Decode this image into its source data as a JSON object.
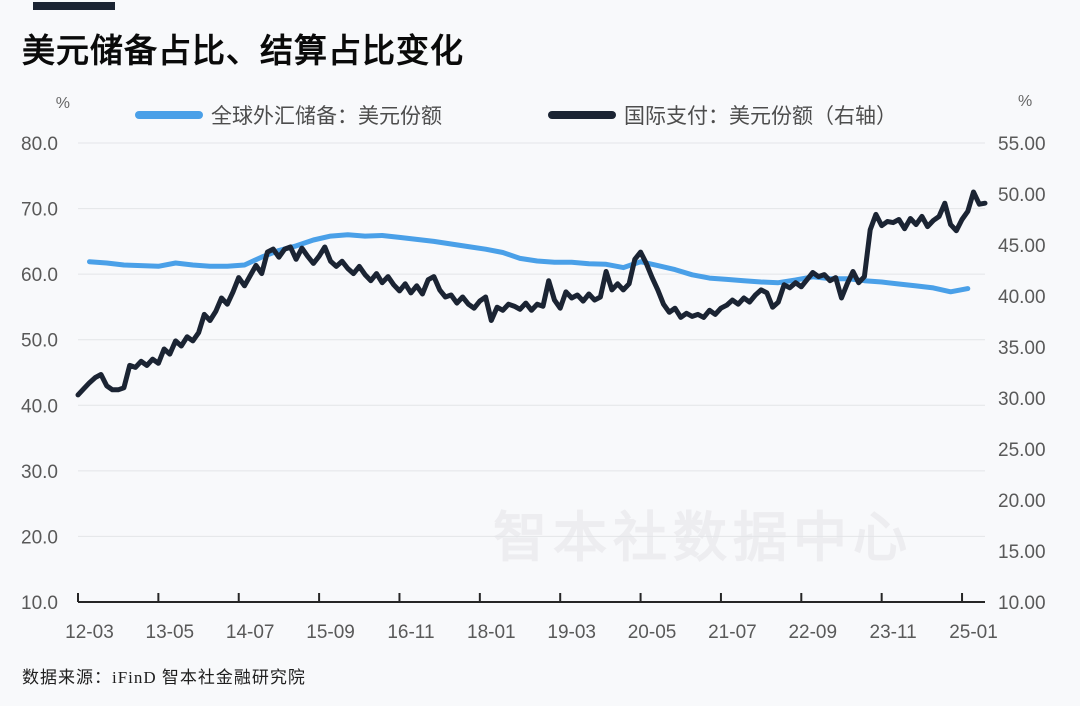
{
  "page": {
    "background": "#f8f9fb"
  },
  "header": {
    "title": "美元储备占比、结算占比变化",
    "accent_bar_color": "#1b2433"
  },
  "legend": [
    {
      "label": "全球外汇储备：美元份额",
      "color": "#4aa0e8"
    },
    {
      "label": "国际支付：美元份额（右轴）",
      "color": "#1b2433"
    }
  ],
  "watermark": {
    "text": "智本社数据中心",
    "color": "#ededf0"
  },
  "footer": {
    "source": "数据来源：iFinD 智本社金融研究院"
  },
  "chart_data": {
    "type": "line",
    "title": "美元储备占比、结算占比变化",
    "grid": "horizontal, at left-axis ticks",
    "legend_position": "top",
    "x_axis": {
      "ticks": [
        "12-03",
        "13-05",
        "14-07",
        "15-09",
        "16-11",
        "18-01",
        "19-03",
        "20-05",
        "21-07",
        "22-09",
        "23-11",
        "25-01"
      ],
      "months_between_ticks": 14,
      "label_month_offset": 2,
      "months_total": 158
    },
    "left_axis": {
      "unit": "%",
      "min": 10,
      "max": 80,
      "ticks": [
        "80.0",
        "70.0",
        "60.0",
        "50.0",
        "40.0",
        "30.0",
        "20.0",
        "10.0"
      ]
    },
    "right_axis": {
      "unit": "%",
      "min": 10,
      "max": 55,
      "ticks": [
        "55.00",
        "50.00",
        "45.00",
        "40.00",
        "35.00",
        "30.00",
        "25.00",
        "20.00",
        "15.00",
        "10.00"
      ]
    },
    "series": [
      {
        "name": "全球外汇储备：美元份额",
        "axis": "left",
        "color": "#4aa0e8",
        "frequency": "quarterly",
        "start_period": "2012-Q1",
        "end_period": "2024-Q4",
        "start_month_offset": 2,
        "month_step": 3,
        "values": [
          61.9,
          61.7,
          61.4,
          61.3,
          61.2,
          61.7,
          61.4,
          61.2,
          61.2,
          61.4,
          62.6,
          63.6,
          64.3,
          65.2,
          65.8,
          66.0,
          65.8,
          65.9,
          65.6,
          65.3,
          65.0,
          64.6,
          64.2,
          63.8,
          63.3,
          62.4,
          62.0,
          61.8,
          61.8,
          61.6,
          61.5,
          61.0,
          61.9,
          61.3,
          60.7,
          59.9,
          59.4,
          59.2,
          59.0,
          58.8,
          58.7,
          59.1,
          59.6,
          59.3,
          59.3,
          59.0,
          58.8,
          58.5,
          58.2,
          57.9,
          57.3,
          57.8
        ]
      },
      {
        "name": "国际支付：美元份额（右轴）",
        "axis": "right",
        "color": "#1b2433",
        "frequency": "monthly",
        "start_period": "2012-01",
        "end_period": "2025-03",
        "start_month_offset": 0,
        "month_step": 1,
        "values": [
          30.3,
          30.9,
          31.5,
          32.0,
          32.3,
          31.2,
          30.8,
          30.8,
          31.0,
          33.2,
          33.0,
          33.6,
          33.2,
          33.8,
          33.4,
          34.8,
          34.3,
          35.6,
          35.1,
          36.0,
          35.6,
          36.4,
          38.2,
          37.6,
          38.5,
          39.8,
          39.2,
          40.4,
          41.8,
          41.0,
          42.0,
          43.0,
          42.2,
          44.3,
          44.6,
          43.8,
          44.6,
          44.8,
          43.6,
          44.7,
          43.9,
          43.2,
          43.9,
          44.8,
          43.4,
          42.9,
          43.4,
          42.7,
          42.2,
          42.9,
          42.1,
          41.5,
          42.2,
          41.3,
          41.9,
          41.1,
          40.5,
          41.2,
          40.3,
          41.0,
          40.2,
          41.6,
          41.9,
          40.6,
          39.9,
          40.1,
          39.3,
          39.9,
          39.2,
          38.8,
          39.5,
          39.9,
          37.6,
          38.9,
          38.6,
          39.2,
          39.0,
          38.7,
          39.3,
          38.6,
          39.2,
          39.0,
          41.5,
          39.6,
          38.8,
          40.4,
          39.8,
          40.1,
          39.5,
          40.2,
          39.6,
          39.9,
          42.4,
          40.6,
          41.2,
          40.6,
          41.2,
          43.6,
          44.3,
          43.2,
          41.8,
          40.6,
          39.2,
          38.4,
          38.8,
          37.9,
          38.3,
          38.0,
          38.2,
          37.9,
          38.6,
          38.2,
          38.8,
          39.1,
          39.6,
          39.2,
          39.8,
          39.4,
          40.1,
          40.6,
          40.3,
          38.9,
          39.4,
          41.1,
          40.8,
          41.3,
          40.9,
          41.6,
          42.3,
          41.9,
          42.1,
          41.5,
          41.8,
          39.8,
          41.2,
          42.4,
          41.3,
          41.9,
          46.5,
          48.0,
          46.9,
          47.3,
          47.2,
          47.5,
          46.6,
          47.6,
          47.0,
          47.8,
          46.8,
          47.4,
          47.8,
          49.1,
          47.0,
          46.4,
          47.5,
          48.3,
          50.2,
          49.0,
          49.1
        ]
      }
    ]
  }
}
